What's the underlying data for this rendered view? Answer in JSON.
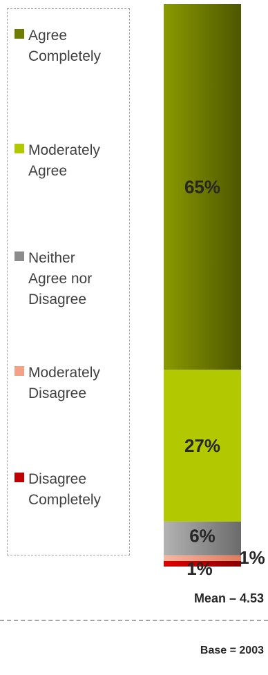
{
  "colors": {
    "agree_completely": "#6e7d00",
    "moderately_agree": "#b2c800",
    "neither": "#8c8c8c",
    "moderately_disagree": "#f4a287",
    "disagree_completely": "#c00000"
  },
  "chart_data": {
    "type": "bar",
    "stacked": true,
    "orientation": "vertical",
    "series": [
      {
        "name": "Disagree Completely",
        "values": [
          1
        ],
        "label": "1%"
      },
      {
        "name": "Moderately Disagree",
        "values": [
          1
        ],
        "label": "1%"
      },
      {
        "name": "Neither Agree nor Disagree",
        "values": [
          6
        ],
        "label": "6%"
      },
      {
        "name": "Moderately Agree",
        "values": [
          27
        ],
        "label": "27%"
      },
      {
        "name": "Agree Completely",
        "values": [
          65
        ],
        "label": "65%"
      }
    ],
    "legend": [
      {
        "key": "agree_completely",
        "lines": [
          "Agree",
          "Completely"
        ]
      },
      {
        "key": "moderately_agree",
        "lines": [
          "Moderately",
          "Agree"
        ]
      },
      {
        "key": "neither",
        "lines": [
          "Neither",
          "Agree nor",
          "Disagree"
        ]
      },
      {
        "key": "moderately_disagree",
        "lines": [
          "Moderately",
          "Disagree"
        ]
      },
      {
        "key": "disagree_completely",
        "lines": [
          "Disagree",
          "Completely"
        ]
      }
    ],
    "legend_placement": "left",
    "grid": false
  },
  "footer": {
    "mean": "Mean – 4.53",
    "base": "Base = 2003"
  }
}
